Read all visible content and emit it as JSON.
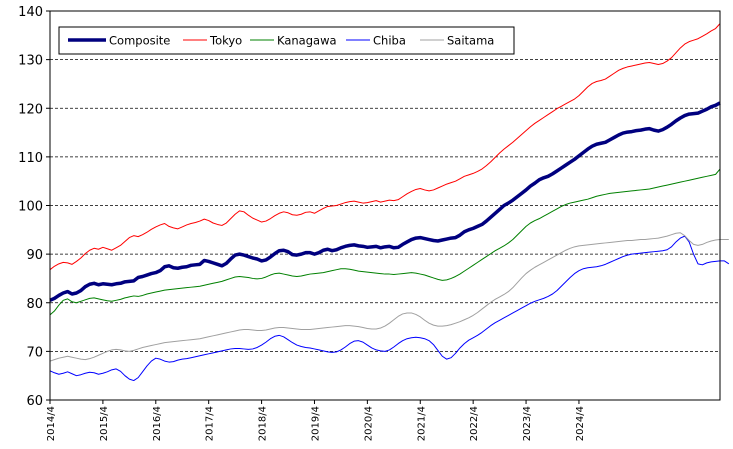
{
  "chart_data": {
    "type": "line",
    "title": "",
    "xlabel": "",
    "ylabel": "",
    "ylim": [
      60,
      140
    ],
    "yticks": [
      60,
      70,
      80,
      90,
      100,
      110,
      120,
      130,
      140
    ],
    "grid": "horizontal dashed",
    "legend_position": "top-left (inside plot)",
    "x_start": "2014/4",
    "x_end": "2024/4",
    "x_tick_labels": [
      "2014/4",
      "2015/4",
      "2016/4",
      "2017/4",
      "2018/4",
      "2019/4",
      "2020/4",
      "2021/4",
      "2022/4",
      "2023/4",
      "2024/4"
    ],
    "series": [
      {
        "name": "Composite",
        "color": "#00007f",
        "width": 3.5,
        "values": [
          80.5,
          80.9,
          81.5,
          82.0,
          82.3,
          81.8,
          82.0,
          82.5,
          83.3,
          83.8,
          84.0,
          83.7,
          83.9,
          83.8,
          83.7,
          83.9,
          84.0,
          84.3,
          84.4,
          84.5,
          85.2,
          85.4,
          85.7,
          86.0,
          86.2,
          86.6,
          87.4,
          87.6,
          87.2,
          87.1,
          87.3,
          87.4,
          87.7,
          87.8,
          87.9,
          88.7,
          88.5,
          88.2,
          87.9,
          87.6,
          88.1,
          89.0,
          89.8,
          90.0,
          89.8,
          89.5,
          89.2,
          89.0,
          88.6,
          88.8,
          89.4,
          90.1,
          90.7,
          90.8,
          90.5,
          89.9,
          89.8,
          90.0,
          90.3,
          90.3,
          90.0,
          90.3,
          90.8,
          91.0,
          90.7,
          90.9,
          91.3,
          91.6,
          91.8,
          91.9,
          91.7,
          91.6,
          91.4,
          91.5,
          91.6,
          91.3,
          91.5,
          91.6,
          91.3,
          91.4,
          92.0,
          92.5,
          93.0,
          93.3,
          93.4,
          93.2,
          93.0,
          92.8,
          92.7,
          92.9,
          93.1,
          93.3,
          93.4,
          93.9,
          94.6,
          95.0,
          95.3,
          95.7,
          96.1,
          96.8,
          97.6,
          98.4,
          99.2,
          100.0,
          100.5,
          101.1,
          101.8,
          102.5,
          103.2,
          104.0,
          104.6,
          105.3,
          105.7,
          106.0,
          106.5,
          107.1,
          107.7,
          108.3,
          108.9,
          109.5,
          110.2,
          110.9,
          111.6,
          112.2,
          112.6,
          112.8,
          113.0,
          113.5,
          114.0,
          114.5,
          114.9,
          115.1,
          115.2,
          115.4,
          115.5,
          115.7,
          115.8,
          115.5,
          115.3,
          115.6,
          116.1,
          116.7,
          117.4,
          118.0,
          118.5,
          118.8,
          118.9,
          119.0,
          119.4,
          119.8,
          120.3,
          120.6,
          121.1
        ]
      },
      {
        "name": "Tokyo",
        "color": "#ff0000",
        "width": 1,
        "values": [
          86.8,
          87.5,
          88.0,
          88.3,
          88.2,
          87.9,
          88.5,
          89.2,
          90.1,
          90.8,
          91.2,
          91.0,
          91.4,
          91.1,
          90.8,
          91.3,
          91.8,
          92.6,
          93.4,
          93.8,
          93.6,
          94.0,
          94.5,
          95.1,
          95.6,
          96.0,
          96.3,
          95.7,
          95.4,
          95.2,
          95.6,
          96.0,
          96.3,
          96.5,
          96.8,
          97.2,
          96.9,
          96.4,
          96.1,
          95.9,
          96.4,
          97.3,
          98.2,
          98.9,
          98.7,
          98.0,
          97.4,
          97.0,
          96.6,
          96.8,
          97.3,
          97.9,
          98.4,
          98.7,
          98.5,
          98.1,
          98.0,
          98.2,
          98.6,
          98.7,
          98.4,
          98.9,
          99.4,
          99.8,
          99.9,
          100.0,
          100.3,
          100.6,
          100.8,
          100.9,
          100.7,
          100.5,
          100.6,
          100.8,
          101.0,
          100.7,
          100.9,
          101.1,
          101.0,
          101.2,
          101.8,
          102.4,
          102.9,
          103.3,
          103.5,
          103.2,
          103.0,
          103.2,
          103.6,
          104.0,
          104.4,
          104.7,
          105.0,
          105.5,
          106.0,
          106.3,
          106.6,
          107.0,
          107.5,
          108.2,
          109.0,
          109.9,
          110.8,
          111.6,
          112.3,
          113.0,
          113.8,
          114.6,
          115.4,
          116.2,
          116.9,
          117.5,
          118.1,
          118.7,
          119.3,
          119.9,
          120.4,
          120.9,
          121.4,
          121.9,
          122.6,
          123.5,
          124.4,
          125.1,
          125.5,
          125.7,
          126.0,
          126.6,
          127.2,
          127.8,
          128.2,
          128.5,
          128.7,
          128.9,
          129.1,
          129.3,
          129.4,
          129.2,
          129.0,
          129.2,
          129.7,
          130.4,
          131.4,
          132.4,
          133.2,
          133.7,
          134.0,
          134.3,
          134.8,
          135.3,
          135.9,
          136.4,
          137.4
        ]
      },
      {
        "name": "Kanagawa",
        "color": "#008000",
        "width": 1,
        "values": [
          77.5,
          78.3,
          79.5,
          80.5,
          80.8,
          80.2,
          80.0,
          80.3,
          80.6,
          80.9,
          81.0,
          80.8,
          80.6,
          80.4,
          80.3,
          80.5,
          80.7,
          81.0,
          81.2,
          81.4,
          81.3,
          81.5,
          81.8,
          82.0,
          82.2,
          82.4,
          82.6,
          82.7,
          82.8,
          82.9,
          83.0,
          83.1,
          83.2,
          83.3,
          83.4,
          83.6,
          83.8,
          84.0,
          84.2,
          84.4,
          84.7,
          85.0,
          85.3,
          85.4,
          85.3,
          85.2,
          85.0,
          84.9,
          85.0,
          85.3,
          85.7,
          86.0,
          86.1,
          85.9,
          85.7,
          85.5,
          85.4,
          85.5,
          85.7,
          85.9,
          86.0,
          86.1,
          86.2,
          86.4,
          86.6,
          86.8,
          87.0,
          87.0,
          86.9,
          86.7,
          86.5,
          86.4,
          86.3,
          86.2,
          86.1,
          86.0,
          85.9,
          85.9,
          85.8,
          85.9,
          86.0,
          86.1,
          86.2,
          86.1,
          85.9,
          85.7,
          85.4,
          85.1,
          84.8,
          84.6,
          84.7,
          85.0,
          85.4,
          85.9,
          86.5,
          87.1,
          87.7,
          88.3,
          88.9,
          89.5,
          90.1,
          90.7,
          91.2,
          91.7,
          92.3,
          93.0,
          93.9,
          94.8,
          95.7,
          96.4,
          96.9,
          97.3,
          97.8,
          98.3,
          98.8,
          99.3,
          99.8,
          100.2,
          100.5,
          100.7,
          100.9,
          101.1,
          101.3,
          101.6,
          101.9,
          102.1,
          102.3,
          102.5,
          102.6,
          102.7,
          102.8,
          102.9,
          103.0,
          103.1,
          103.2,
          103.3,
          103.4,
          103.6,
          103.8,
          104.0,
          104.2,
          104.4,
          104.6,
          104.8,
          105.0,
          105.2,
          105.4,
          105.6,
          105.8,
          106.0,
          106.2,
          106.4,
          107.5
        ]
      },
      {
        "name": "Chiba",
        "color": "#0000ff",
        "width": 1,
        "values": [
          66.0,
          65.6,
          65.3,
          65.5,
          65.8,
          65.4,
          65.0,
          65.2,
          65.5,
          65.7,
          65.6,
          65.3,
          65.5,
          65.8,
          66.2,
          66.4,
          65.9,
          65.0,
          64.3,
          64.0,
          64.6,
          65.8,
          67.0,
          68.0,
          68.6,
          68.4,
          68.0,
          67.8,
          67.9,
          68.2,
          68.4,
          68.5,
          68.7,
          68.9,
          69.1,
          69.3,
          69.5,
          69.7,
          69.9,
          70.1,
          70.3,
          70.5,
          70.6,
          70.6,
          70.5,
          70.4,
          70.5,
          70.8,
          71.3,
          71.9,
          72.6,
          73.1,
          73.3,
          73.0,
          72.4,
          71.8,
          71.3,
          71.0,
          70.8,
          70.7,
          70.5,
          70.3,
          70.1,
          69.9,
          69.8,
          69.9,
          70.3,
          70.9,
          71.6,
          72.1,
          72.2,
          71.9,
          71.3,
          70.7,
          70.3,
          70.1,
          70.0,
          70.3,
          70.9,
          71.6,
          72.2,
          72.6,
          72.8,
          72.9,
          72.8,
          72.6,
          72.2,
          71.4,
          70.2,
          69.0,
          68.4,
          68.7,
          69.6,
          70.7,
          71.6,
          72.3,
          72.8,
          73.3,
          73.9,
          74.6,
          75.3,
          75.9,
          76.4,
          76.9,
          77.4,
          77.9,
          78.4,
          78.9,
          79.4,
          79.9,
          80.3,
          80.6,
          80.9,
          81.3,
          81.8,
          82.5,
          83.4,
          84.3,
          85.2,
          86.0,
          86.6,
          87.0,
          87.2,
          87.3,
          87.4,
          87.6,
          87.9,
          88.3,
          88.7,
          89.1,
          89.5,
          89.8,
          90.0,
          90.1,
          90.2,
          90.3,
          90.4,
          90.5,
          90.6,
          90.7,
          90.9,
          91.5,
          92.5,
          93.3,
          93.7,
          92.5,
          90.0,
          88.0,
          87.8,
          88.2,
          88.4,
          88.5,
          88.6,
          88.6,
          88.0
        ]
      },
      {
        "name": "Saitama",
        "color": "#a0a0a0",
        "width": 1,
        "values": [
          68.0,
          68.3,
          68.6,
          68.8,
          69.0,
          68.8,
          68.6,
          68.4,
          68.3,
          68.5,
          68.8,
          69.2,
          69.6,
          70.0,
          70.3,
          70.4,
          70.3,
          70.1,
          70.0,
          70.2,
          70.5,
          70.8,
          71.0,
          71.2,
          71.4,
          71.6,
          71.8,
          71.9,
          72.0,
          72.1,
          72.2,
          72.3,
          72.4,
          72.5,
          72.6,
          72.8,
          73.0,
          73.2,
          73.4,
          73.6,
          73.8,
          74.0,
          74.2,
          74.4,
          74.5,
          74.5,
          74.4,
          74.3,
          74.3,
          74.4,
          74.6,
          74.8,
          74.9,
          74.9,
          74.8,
          74.7,
          74.6,
          74.5,
          74.5,
          74.5,
          74.6,
          74.7,
          74.8,
          74.9,
          75.0,
          75.1,
          75.2,
          75.3,
          75.3,
          75.2,
          75.1,
          74.9,
          74.7,
          74.6,
          74.6,
          74.8,
          75.2,
          75.8,
          76.5,
          77.2,
          77.7,
          77.9,
          77.9,
          77.6,
          77.1,
          76.4,
          75.8,
          75.4,
          75.2,
          75.2,
          75.3,
          75.5,
          75.8,
          76.1,
          76.5,
          76.9,
          77.4,
          78.0,
          78.7,
          79.4,
          80.1,
          80.7,
          81.2,
          81.7,
          82.3,
          83.1,
          84.1,
          85.1,
          86.0,
          86.7,
          87.3,
          87.8,
          88.3,
          88.8,
          89.3,
          89.8,
          90.3,
          90.8,
          91.2,
          91.5,
          91.7,
          91.8,
          91.9,
          92.0,
          92.1,
          92.2,
          92.3,
          92.4,
          92.5,
          92.6,
          92.7,
          92.8,
          92.8,
          92.9,
          93.0,
          93.0,
          93.1,
          93.2,
          93.3,
          93.5,
          93.7,
          94.0,
          94.3,
          94.4,
          93.8,
          92.8,
          92.0,
          91.8,
          92.0,
          92.4,
          92.7,
          92.9,
          93.0,
          93.0,
          93.0
        ]
      }
    ]
  }
}
